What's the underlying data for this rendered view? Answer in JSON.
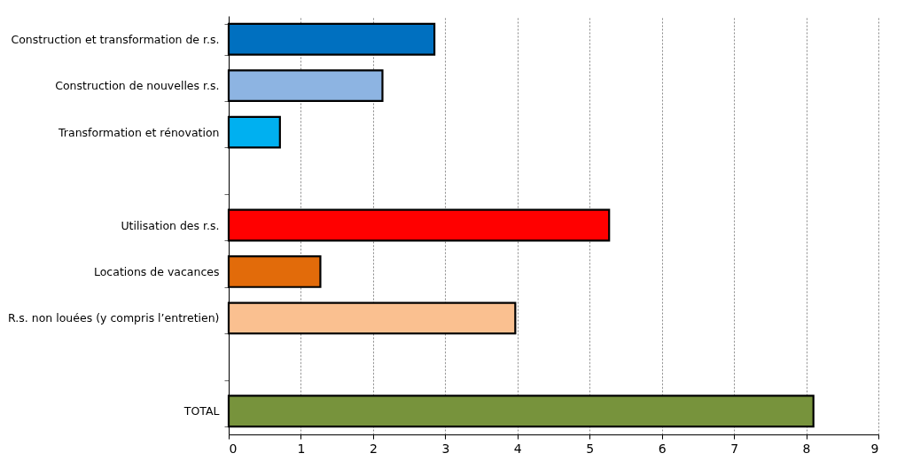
{
  "chart_data": {
    "type": "bar",
    "orientation": "horizontal",
    "categories": [
      "Construction et transformation de r.s.",
      "Construction de nouvelles r.s.",
      "Transformation et rénovation",
      null,
      "Utilisation des r.s.",
      "Locations de vacances",
      "R.s. non louées (y compris l’entretien)",
      null,
      "TOTAL"
    ],
    "values": [
      2.85,
      2.13,
      0.71,
      null,
      5.27,
      1.27,
      3.97,
      null,
      8.1
    ],
    "colors": [
      "#0070c0",
      "#8db4e2",
      "#00b0f0",
      "#ffffff",
      "#ff0000",
      "#e26b0a",
      "#fac090",
      "#ffffff",
      "#77933c"
    ],
    "xlim": [
      0,
      9
    ],
    "xticks": [
      0,
      1,
      2,
      3,
      4,
      5,
      6,
      7,
      8,
      9
    ],
    "grid": "x",
    "legend": false
  }
}
